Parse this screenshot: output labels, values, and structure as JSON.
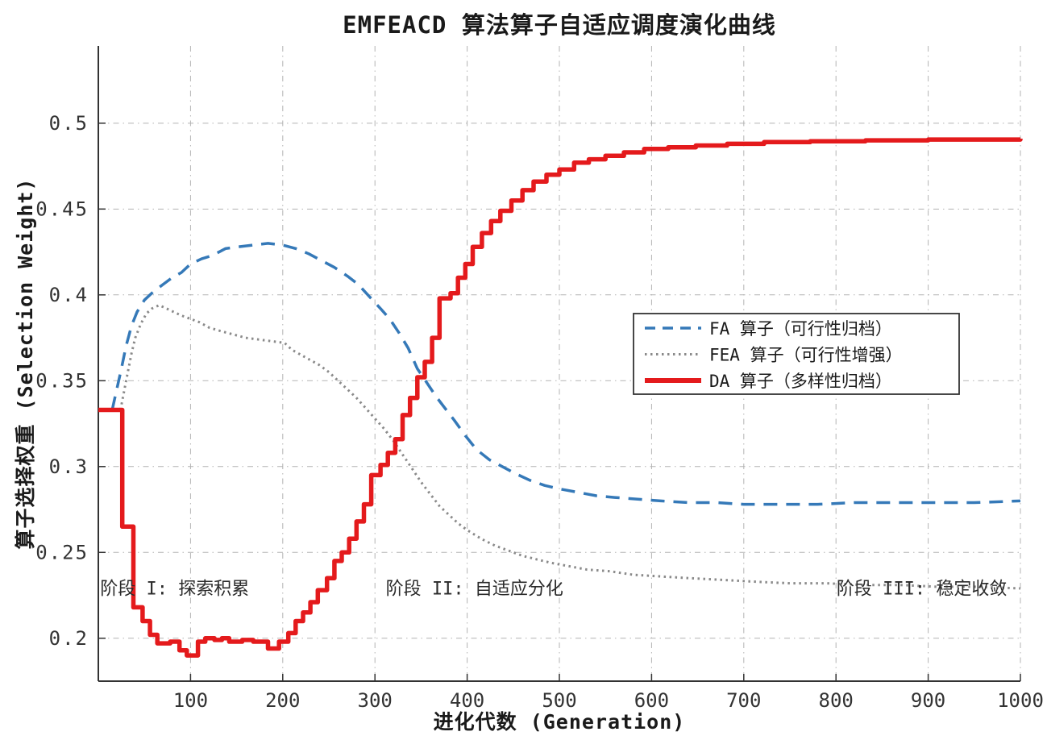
{
  "chart_data": {
    "type": "line",
    "title": "EMFEACD 算法算子自适应调度演化曲线",
    "xlabel": "进化代数 (Generation)",
    "ylabel": "算子选择权重 (Selection Weight)",
    "xlim": [
      0,
      1000
    ],
    "ylim": [
      0.175,
      0.545
    ],
    "xticks": [
      100,
      200,
      300,
      400,
      500,
      600,
      700,
      800,
      900,
      1000
    ],
    "yticks": [
      0.2,
      0.25,
      0.3,
      0.35,
      0.4,
      0.45,
      0.5
    ],
    "grid": true,
    "grid_color": "#b3b3b3",
    "axis_color": "#333333",
    "legend_position": "right-center",
    "series": [
      {
        "name": "FA 算子（可行性归档）",
        "color": "#3579b8",
        "style": "dashed",
        "width": 3.5,
        "step": false,
        "points": [
          [
            15,
            0.333
          ],
          [
            20,
            0.345
          ],
          [
            25,
            0.357
          ],
          [
            30,
            0.37
          ],
          [
            36,
            0.382
          ],
          [
            42,
            0.39
          ],
          [
            50,
            0.397
          ],
          [
            60,
            0.402
          ],
          [
            70,
            0.406
          ],
          [
            80,
            0.41
          ],
          [
            90,
            0.413
          ],
          [
            100,
            0.418
          ],
          [
            112,
            0.421
          ],
          [
            124,
            0.423
          ],
          [
            138,
            0.427
          ],
          [
            152,
            0.428
          ],
          [
            168,
            0.429
          ],
          [
            184,
            0.43
          ],
          [
            200,
            0.429
          ],
          [
            214,
            0.427
          ],
          [
            228,
            0.424
          ],
          [
            242,
            0.42
          ],
          [
            256,
            0.416
          ],
          [
            270,
            0.411
          ],
          [
            282,
            0.406
          ],
          [
            294,
            0.399
          ],
          [
            306,
            0.392
          ],
          [
            316,
            0.386
          ],
          [
            326,
            0.378
          ],
          [
            336,
            0.369
          ],
          [
            346,
            0.357
          ],
          [
            356,
            0.349
          ],
          [
            366,
            0.341
          ],
          [
            376,
            0.334
          ],
          [
            386,
            0.327
          ],
          [
            398,
            0.318
          ],
          [
            410,
            0.31
          ],
          [
            424,
            0.304
          ],
          [
            438,
            0.3
          ],
          [
            452,
            0.296
          ],
          [
            468,
            0.292
          ],
          [
            484,
            0.289
          ],
          [
            500,
            0.287
          ],
          [
            520,
            0.285
          ],
          [
            540,
            0.283
          ],
          [
            560,
            0.282
          ],
          [
            585,
            0.281
          ],
          [
            610,
            0.28
          ],
          [
            640,
            0.279
          ],
          [
            670,
            0.279
          ],
          [
            700,
            0.278
          ],
          [
            740,
            0.278
          ],
          [
            780,
            0.278
          ],
          [
            820,
            0.279
          ],
          [
            860,
            0.279
          ],
          [
            900,
            0.279
          ],
          [
            950,
            0.279
          ],
          [
            1000,
            0.28
          ]
        ]
      },
      {
        "name": "FEA 算子（可行性增强）",
        "color": "#8a8a8a",
        "style": "dotted",
        "width": 3,
        "step": false,
        "points": [
          [
            24,
            0.333
          ],
          [
            28,
            0.344
          ],
          [
            32,
            0.355
          ],
          [
            36,
            0.366
          ],
          [
            40,
            0.375
          ],
          [
            46,
            0.383
          ],
          [
            52,
            0.389
          ],
          [
            58,
            0.392
          ],
          [
            66,
            0.394
          ],
          [
            74,
            0.392
          ],
          [
            82,
            0.39
          ],
          [
            90,
            0.388
          ],
          [
            100,
            0.386
          ],
          [
            110,
            0.384
          ],
          [
            120,
            0.381
          ],
          [
            132,
            0.379
          ],
          [
            146,
            0.377
          ],
          [
            160,
            0.375
          ],
          [
            174,
            0.374
          ],
          [
            188,
            0.373
          ],
          [
            202,
            0.372
          ],
          [
            210,
            0.368
          ],
          [
            220,
            0.365
          ],
          [
            230,
            0.362
          ],
          [
            240,
            0.359
          ],
          [
            250,
            0.355
          ],
          [
            260,
            0.35
          ],
          [
            270,
            0.345
          ],
          [
            280,
            0.34
          ],
          [
            290,
            0.334
          ],
          [
            300,
            0.328
          ],
          [
            310,
            0.322
          ],
          [
            320,
            0.315
          ],
          [
            330,
            0.307
          ],
          [
            340,
            0.299
          ],
          [
            350,
            0.291
          ],
          [
            360,
            0.284
          ],
          [
            370,
            0.277
          ],
          [
            380,
            0.272
          ],
          [
            390,
            0.267
          ],
          [
            400,
            0.263
          ],
          [
            415,
            0.258
          ],
          [
            430,
            0.254
          ],
          [
            445,
            0.251
          ],
          [
            460,
            0.248
          ],
          [
            475,
            0.246
          ],
          [
            490,
            0.244
          ],
          [
            510,
            0.242
          ],
          [
            530,
            0.24
          ],
          [
            555,
            0.239
          ],
          [
            580,
            0.237
          ],
          [
            610,
            0.236
          ],
          [
            640,
            0.235
          ],
          [
            675,
            0.234
          ],
          [
            710,
            0.233
          ],
          [
            750,
            0.232
          ],
          [
            790,
            0.232
          ],
          [
            830,
            0.231
          ],
          [
            870,
            0.231
          ],
          [
            910,
            0.23
          ],
          [
            955,
            0.23
          ],
          [
            1000,
            0.229
          ]
        ]
      },
      {
        "name": "DA 算子（多样性归档）",
        "color": "#e41a1c",
        "style": "solid",
        "width": 5.5,
        "step": true,
        "points": [
          [
            0,
            0.333
          ],
          [
            26,
            0.265
          ],
          [
            38,
            0.218
          ],
          [
            48,
            0.21
          ],
          [
            56,
            0.202
          ],
          [
            64,
            0.197
          ],
          [
            78,
            0.198
          ],
          [
            88,
            0.193
          ],
          [
            96,
            0.19
          ],
          [
            108,
            0.198
          ],
          [
            116,
            0.2
          ],
          [
            126,
            0.199
          ],
          [
            134,
            0.2
          ],
          [
            142,
            0.198
          ],
          [
            156,
            0.199
          ],
          [
            168,
            0.198
          ],
          [
            184,
            0.194
          ],
          [
            196,
            0.198
          ],
          [
            206,
            0.203
          ],
          [
            214,
            0.21
          ],
          [
            222,
            0.215
          ],
          [
            230,
            0.221
          ],
          [
            238,
            0.228
          ],
          [
            248,
            0.235
          ],
          [
            256,
            0.245
          ],
          [
            264,
            0.25
          ],
          [
            272,
            0.258
          ],
          [
            280,
            0.268
          ],
          [
            288,
            0.278
          ],
          [
            296,
            0.295
          ],
          [
            306,
            0.301
          ],
          [
            314,
            0.308
          ],
          [
            322,
            0.316
          ],
          [
            330,
            0.33
          ],
          [
            338,
            0.34
          ],
          [
            346,
            0.352
          ],
          [
            354,
            0.361
          ],
          [
            362,
            0.375
          ],
          [
            370,
            0.398
          ],
          [
            382,
            0.401
          ],
          [
            390,
            0.41
          ],
          [
            398,
            0.418
          ],
          [
            406,
            0.428
          ],
          [
            416,
            0.436
          ],
          [
            426,
            0.443
          ],
          [
            436,
            0.449
          ],
          [
            448,
            0.455
          ],
          [
            460,
            0.461
          ],
          [
            472,
            0.466
          ],
          [
            486,
            0.47
          ],
          [
            500,
            0.473
          ],
          [
            516,
            0.477
          ],
          [
            532,
            0.479
          ],
          [
            550,
            0.481
          ],
          [
            570,
            0.483
          ],
          [
            592,
            0.485
          ],
          [
            618,
            0.486
          ],
          [
            648,
            0.487
          ],
          [
            682,
            0.488
          ],
          [
            722,
            0.489
          ],
          [
            772,
            0.4895
          ],
          [
            832,
            0.49
          ],
          [
            900,
            0.4905
          ],
          [
            1000,
            0.491
          ]
        ]
      }
    ],
    "annotations": [
      {
        "text": "阶段 I: 探索积累",
        "x": 2,
        "y": 0.2255,
        "anchor": "start"
      },
      {
        "text": "阶段 II: 自适应分化",
        "x": 408,
        "y": 0.2255,
        "anchor": "middle"
      },
      {
        "text": "阶段 III: 稳定收敛",
        "x": 893,
        "y": 0.2255,
        "anchor": "middle"
      }
    ]
  }
}
